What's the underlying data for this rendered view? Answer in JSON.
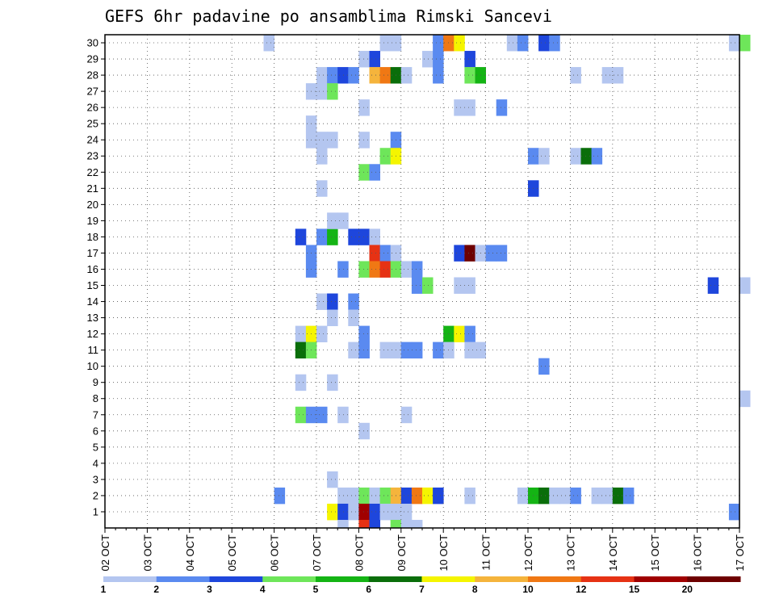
{
  "chart_data": {
    "type": "heatmap",
    "title": "GEFS 6hr padavine po ansamblima Rimski Sancevi",
    "xlabel": "",
    "ylabel": "",
    "x_tick_labels": [
      "02 OCT",
      "03 OCT",
      "04 OCT",
      "05 OCT",
      "06 OCT",
      "07 OCT",
      "08 OCT",
      "09 OCT",
      "10 OCT",
      "11 OCT",
      "12 OCT",
      "13 OCT",
      "14 OCT",
      "15 OCT",
      "16 OCT",
      "17 OCT"
    ],
    "x_range": [
      "02 OCT 00Z",
      "17 OCT 00Z"
    ],
    "step_hours": 6,
    "y_tick_labels": [
      "1",
      "2",
      "3",
      "4",
      "5",
      "6",
      "7",
      "8",
      "9",
      "10",
      "11",
      "12",
      "13",
      "14",
      "15",
      "16",
      "17",
      "18",
      "19",
      "20",
      "21",
      "22",
      "23",
      "24",
      "25",
      "26",
      "27",
      "28",
      "29",
      "30"
    ],
    "y_range": [
      0,
      30
    ],
    "grid": true,
    "legend": {
      "placement": "bottom",
      "thresholds": [
        "1",
        "2",
        "3",
        "4",
        "5",
        "6",
        "7",
        "8",
        "10",
        "12",
        "15",
        "20"
      ],
      "colors": [
        "#b4c6f0",
        "#5a8af0",
        "#1e46dc",
        "#6ee65a",
        "#14b414",
        "#0a6e0a",
        "#f5f500",
        "#f5b43c",
        "#f07814",
        "#e63214",
        "#a00000",
        "#6e0000"
      ]
    },
    "colors_by_level": {
      "1": "#b4c6f0",
      "2": "#5a8af0",
      "3": "#1e46dc",
      "4": "#6ee65a",
      "5": "#14b414",
      "6": "#0a6e0a",
      "7": "#f5f500",
      "8": "#f5b43c",
      "10": "#f07814",
      "12": "#e63214",
      "15": "#a00000",
      "20": "#6e0000"
    },
    "members": [
      {
        "member": 30,
        "cells": [
          [
            15,
            1
          ],
          [
            26,
            1
          ],
          [
            27,
            1
          ],
          [
            31,
            2
          ],
          [
            32,
            10
          ],
          [
            33,
            7
          ],
          [
            38,
            1
          ],
          [
            39,
            2
          ],
          [
            41,
            3
          ],
          [
            42,
            2
          ],
          [
            59,
            1
          ],
          [
            60,
            4
          ]
        ]
      },
      {
        "member": 29,
        "cells": [
          [
            24,
            1
          ],
          [
            25,
            3
          ],
          [
            30,
            1
          ],
          [
            31,
            2
          ],
          [
            34,
            3
          ]
        ]
      },
      {
        "member": 28,
        "cells": [
          [
            20,
            1
          ],
          [
            21,
            2
          ],
          [
            22,
            3
          ],
          [
            23,
            2
          ],
          [
            25,
            8
          ],
          [
            26,
            10
          ],
          [
            27,
            6
          ],
          [
            28,
            1
          ],
          [
            31,
            2
          ],
          [
            34,
            4
          ],
          [
            35,
            5
          ],
          [
            44,
            1
          ],
          [
            47,
            1
          ],
          [
            48,
            1
          ]
        ]
      },
      {
        "member": 27,
        "cells": [
          [
            19,
            1
          ],
          [
            20,
            1
          ],
          [
            21,
            4
          ]
        ]
      },
      {
        "member": 26,
        "cells": [
          [
            24,
            1
          ],
          [
            33,
            1
          ],
          [
            34,
            1
          ],
          [
            37,
            2
          ]
        ]
      },
      {
        "member": 25,
        "cells": [
          [
            19,
            1
          ]
        ]
      },
      {
        "member": 24,
        "cells": [
          [
            19,
            1
          ],
          [
            20,
            1
          ],
          [
            21,
            1
          ],
          [
            24,
            1
          ],
          [
            27,
            2
          ]
        ]
      },
      {
        "member": 23,
        "cells": [
          [
            20,
            1
          ],
          [
            26,
            4
          ],
          [
            27,
            7
          ],
          [
            40,
            2
          ],
          [
            41,
            1
          ],
          [
            44,
            1
          ],
          [
            45,
            6
          ],
          [
            46,
            2
          ]
        ]
      },
      {
        "member": 22,
        "cells": [
          [
            24,
            4
          ],
          [
            25,
            2
          ]
        ]
      },
      {
        "member": 21,
        "cells": [
          [
            20,
            1
          ],
          [
            40,
            3
          ]
        ]
      },
      {
        "member": 18,
        "cells": [
          [
            18,
            3
          ],
          [
            20,
            2
          ],
          [
            21,
            5
          ],
          [
            23,
            3
          ],
          [
            24,
            3
          ],
          [
            25,
            1
          ]
        ]
      },
      {
        "member": 19,
        "cells": [
          [
            21,
            1
          ],
          [
            22,
            1
          ]
        ]
      },
      {
        "member": 17,
        "cells": [
          [
            19,
            2
          ],
          [
            25,
            12
          ],
          [
            26,
            2
          ],
          [
            27,
            1
          ],
          [
            33,
            3
          ],
          [
            34,
            20
          ],
          [
            35,
            1
          ],
          [
            36,
            2
          ],
          [
            37,
            2
          ]
        ]
      },
      {
        "member": 16,
        "cells": [
          [
            19,
            2
          ],
          [
            22,
            2
          ],
          [
            24,
            4
          ],
          [
            25,
            10
          ],
          [
            26,
            12
          ],
          [
            27,
            4
          ],
          [
            28,
            1
          ],
          [
            29,
            2
          ]
        ]
      },
      {
        "member": 15,
        "cells": [
          [
            29,
            2
          ],
          [
            30,
            4
          ],
          [
            33,
            1
          ],
          [
            34,
            1
          ],
          [
            57,
            3
          ],
          [
            60,
            1
          ]
        ]
      },
      {
        "member": 14,
        "cells": [
          [
            20,
            1
          ],
          [
            21,
            3
          ],
          [
            23,
            2
          ]
        ]
      },
      {
        "member": 13,
        "cells": [
          [
            21,
            1
          ],
          [
            23,
            1
          ]
        ]
      },
      {
        "member": 12,
        "cells": [
          [
            18,
            1
          ],
          [
            19,
            7
          ],
          [
            20,
            1
          ],
          [
            24,
            2
          ],
          [
            32,
            5
          ],
          [
            33,
            7
          ],
          [
            34,
            2
          ]
        ]
      },
      {
        "member": 11,
        "cells": [
          [
            18,
            6
          ],
          [
            19,
            4
          ],
          [
            23,
            1
          ],
          [
            24,
            2
          ],
          [
            26,
            1
          ],
          [
            27,
            1
          ],
          [
            28,
            2
          ],
          [
            29,
            2
          ],
          [
            31,
            2
          ],
          [
            32,
            1
          ],
          [
            34,
            1
          ],
          [
            35,
            1
          ]
        ]
      },
      {
        "member": 10,
        "cells": [
          [
            41,
            2
          ]
        ]
      },
      {
        "member": 9,
        "cells": [
          [
            18,
            1
          ],
          [
            21,
            1
          ]
        ]
      },
      {
        "member": 8,
        "cells": [
          [
            60,
            1
          ]
        ]
      },
      {
        "member": 7,
        "cells": [
          [
            18,
            4
          ],
          [
            19,
            2
          ],
          [
            20,
            2
          ],
          [
            22,
            1
          ],
          [
            28,
            1
          ]
        ]
      },
      {
        "member": 6,
        "cells": [
          [
            24,
            1
          ]
        ]
      },
      {
        "member": 3,
        "cells": [
          [
            21,
            1
          ]
        ]
      },
      {
        "member": 2,
        "cells": [
          [
            16,
            2
          ],
          [
            22,
            1
          ],
          [
            23,
            1
          ],
          [
            24,
            4
          ],
          [
            25,
            1
          ],
          [
            26,
            4
          ],
          [
            27,
            8
          ],
          [
            28,
            3
          ],
          [
            29,
            10
          ],
          [
            30,
            7
          ],
          [
            31,
            3
          ],
          [
            34,
            1
          ],
          [
            39,
            1
          ],
          [
            40,
            5
          ],
          [
            41,
            6
          ],
          [
            42,
            1
          ],
          [
            43,
            1
          ],
          [
            44,
            2
          ],
          [
            46,
            1
          ],
          [
            47,
            1
          ],
          [
            48,
            6
          ],
          [
            49,
            2
          ]
        ]
      },
      {
        "member": 1,
        "cells": [
          [
            21,
            7
          ],
          [
            22,
            3
          ],
          [
            23,
            1
          ],
          [
            24,
            15
          ],
          [
            25,
            3
          ],
          [
            26,
            1
          ],
          [
            27,
            1
          ],
          [
            28,
            1
          ],
          [
            59,
            2
          ]
        ]
      },
      {
        "member": 0,
        "cells": [
          [
            22,
            1
          ],
          [
            24,
            12
          ],
          [
            25,
            3
          ],
          [
            27,
            4
          ],
          [
            28,
            1
          ],
          [
            29,
            1
          ]
        ]
      }
    ]
  }
}
